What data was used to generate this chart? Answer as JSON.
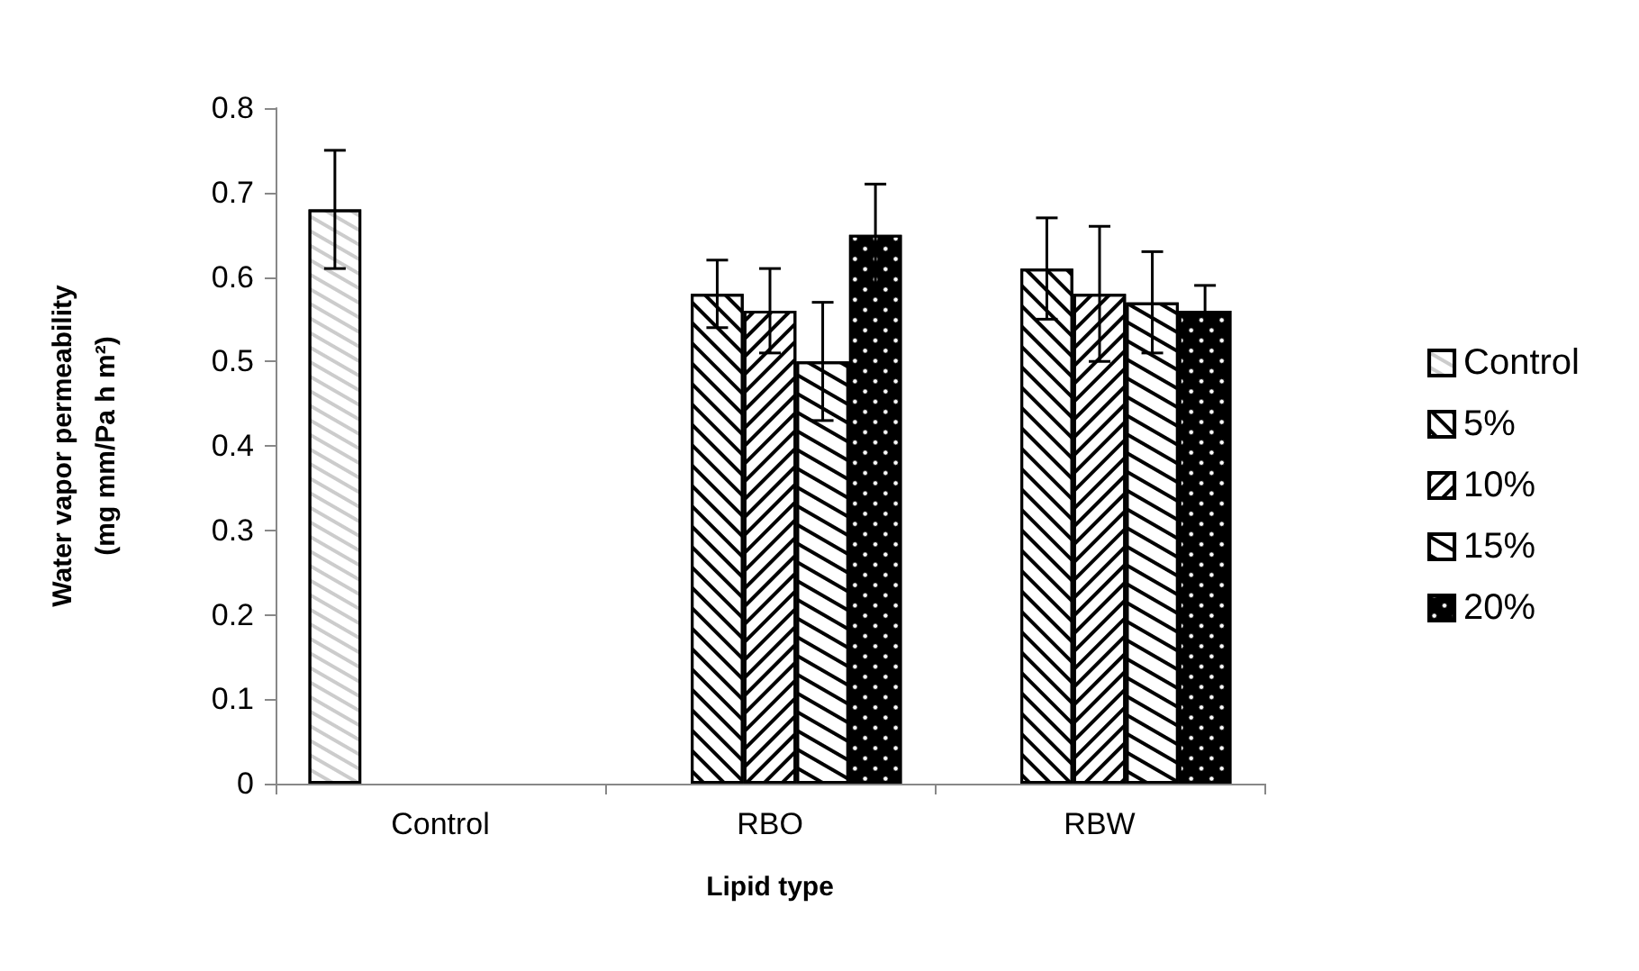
{
  "chart_data": {
    "type": "bar",
    "xlabel": "Lipid type",
    "ylabel": "Water vapor permeability\n(mg mm/Pa h m²)",
    "categories": [
      "Control",
      "RBO",
      "RBW"
    ],
    "series": [
      {
        "name": "Control",
        "color": "#ffffff",
        "values": [
          0.68,
          null,
          null
        ],
        "errors": [
          0.07,
          null,
          null
        ]
      },
      {
        "name": "5%",
        "color": "#ffffff",
        "values": [
          null,
          0.58,
          0.61
        ],
        "errors": [
          null,
          0.04,
          0.06
        ]
      },
      {
        "name": "10%",
        "color": "#ffffff",
        "values": [
          null,
          0.56,
          0.58
        ],
        "errors": [
          null,
          0.05,
          0.08
        ]
      },
      {
        "name": "15%",
        "color": "#ffffff",
        "values": [
          null,
          0.5,
          0.57
        ],
        "errors": [
          null,
          0.07,
          0.06
        ]
      },
      {
        "name": "20%",
        "color": "#000000",
        "values": [
          null,
          0.65,
          0.56
        ],
        "errors": [
          null,
          0.06,
          0.03
        ]
      }
    ],
    "ylim": [
      0,
      0.8
    ],
    "yticks": [
      0,
      0.1,
      0.2,
      0.3,
      0.4,
      0.5,
      0.6,
      0.7,
      0.8
    ],
    "grid": false,
    "legend": "right"
  }
}
